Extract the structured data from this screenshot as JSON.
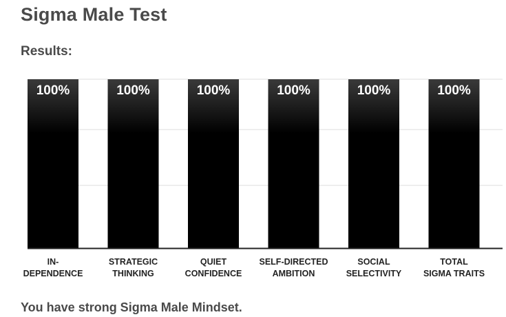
{
  "header": {
    "title": "Sigma Male Test",
    "results_label": "Results:"
  },
  "chart_data": {
    "type": "bar",
    "categories": [
      [
        "IN-",
        "DEPENDENCE"
      ],
      [
        "STRATEGIC",
        "THINKING"
      ],
      [
        "QUIET",
        "CONFIDENCE"
      ],
      [
        "SELF-DIRECTED",
        "AMBITION"
      ],
      [
        "SOCIAL",
        "SELECTIVITY"
      ],
      [
        "TOTAL",
        "SIGMA TRAITS"
      ]
    ],
    "values": [
      100,
      100,
      100,
      100,
      100,
      100
    ],
    "value_labels": [
      "100%",
      "100%",
      "100%",
      "100%",
      "100%",
      "100%"
    ],
    "ylim": [
      0,
      100
    ],
    "grid": true,
    "bar_color": "#000000",
    "bar_top_color": "#3a3a3a",
    "grid_color": "#dddddd",
    "axis_color": "#222222"
  },
  "footer": {
    "summary": "You have strong Sigma Male Mindset."
  }
}
